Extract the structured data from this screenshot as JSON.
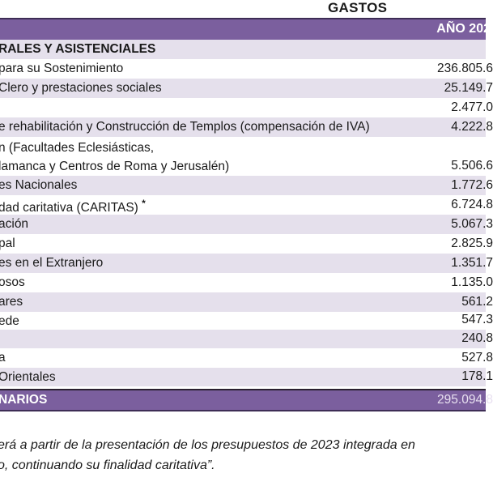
{
  "title": "GASTOS",
  "header": {
    "year_label": "AÑO 202"
  },
  "rows": [
    {
      "label": "RALES Y ASISTENCIALES",
      "value": ""
    },
    {
      "label": "para su Sostenimiento",
      "value": "236.805.6"
    },
    {
      "label": " Clero y prestaciones sociales",
      "value": "25.149.7"
    },
    {
      "label": "",
      "value": "2.477.0"
    },
    {
      "label": "e rehabilitación y Construcción de Templos (compensación de IVA)",
      "value": "4.222.8"
    },
    {
      "label": "n (Facultades Eclesiásticas,",
      "label2": "lamanca y Centros de Roma y Jerusalén)",
      "value": "5.506.6"
    },
    {
      "label": "es Nacionales",
      "value": "1.772.6"
    },
    {
      "label": "dad caritativa (CARITAS) ",
      "mark": "*",
      "value": "6.724.8"
    },
    {
      "label": "ación",
      "value": "5.067.3"
    },
    {
      "label": "pal",
      "value": "2.825.9"
    },
    {
      "label": "es en el Extranjero",
      "value": "1.351.7"
    },
    {
      "label": "osos",
      "value": "1.135.0"
    },
    {
      "label": "ares",
      "value": "561.2"
    },
    {
      "label": "ede",
      "value": "547.3"
    },
    {
      "label": "",
      "value": "240.8"
    },
    {
      "label": "a",
      "value": "527.8"
    },
    {
      "label": "Orientales",
      "value": "178.1"
    }
  ],
  "total": {
    "label": "NARIOS",
    "value": "295.094.8"
  },
  "footnote": {
    "line1": "erá a partir de la presentación de los presupuestos de 2023 integrada en",
    "line2": "o, continuando su finalidad caritativa”."
  }
}
